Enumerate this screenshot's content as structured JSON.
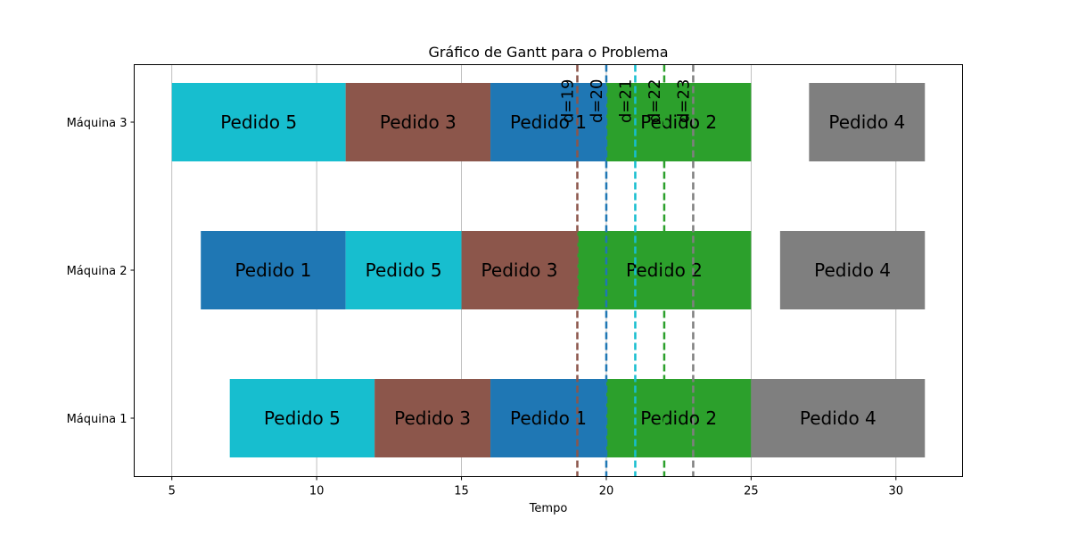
{
  "chart_data": {
    "type": "gantt",
    "title": "Gráfico de Gantt para o Problema",
    "xlabel": "Tempo",
    "ylabel": "",
    "xlim": [
      3.7,
      32.3
    ],
    "xticks": [
      5,
      10,
      15,
      20,
      25,
      30
    ],
    "grid": "vertical",
    "machines": [
      "Máquina 1",
      "Máquina 2",
      "Máquina 3"
    ],
    "tasks": [
      {
        "machine": "Máquina 3",
        "label": "Pedido 5",
        "start": 5,
        "end": 11,
        "color": "#17becf"
      },
      {
        "machine": "Máquina 3",
        "label": "Pedido 3",
        "start": 11,
        "end": 16,
        "color": "#8c564b"
      },
      {
        "machine": "Máquina 3",
        "label": "Pedido 1",
        "start": 16,
        "end": 20,
        "color": "#1f77b4"
      },
      {
        "machine": "Máquina 3",
        "label": "Pedido 2",
        "start": 20,
        "end": 25,
        "color": "#2ca02c"
      },
      {
        "machine": "Máquina 3",
        "label": "Pedido 4",
        "start": 27,
        "end": 31,
        "color": "#7f7f7f"
      },
      {
        "machine": "Máquina 2",
        "label": "Pedido 1",
        "start": 6,
        "end": 11,
        "color": "#1f77b4"
      },
      {
        "machine": "Máquina 2",
        "label": "Pedido 5",
        "start": 11,
        "end": 15,
        "color": "#17becf"
      },
      {
        "machine": "Máquina 2",
        "label": "Pedido 3",
        "start": 15,
        "end": 19,
        "color": "#8c564b"
      },
      {
        "machine": "Máquina 2",
        "label": "Pedido 2",
        "start": 19,
        "end": 25,
        "color": "#2ca02c"
      },
      {
        "machine": "Máquina 2",
        "label": "Pedido 4",
        "start": 26,
        "end": 31,
        "color": "#7f7f7f"
      },
      {
        "machine": "Máquina 1",
        "label": "Pedido 5",
        "start": 7,
        "end": 12,
        "color": "#17becf"
      },
      {
        "machine": "Máquina 1",
        "label": "Pedido 3",
        "start": 12,
        "end": 16,
        "color": "#8c564b"
      },
      {
        "machine": "Máquina 1",
        "label": "Pedido 1",
        "start": 16,
        "end": 20,
        "color": "#1f77b4"
      },
      {
        "machine": "Máquina 1",
        "label": "Pedido 2",
        "start": 20,
        "end": 25,
        "color": "#2ca02c"
      },
      {
        "machine": "Máquina 1",
        "label": "Pedido 4",
        "start": 25,
        "end": 31,
        "color": "#7f7f7f"
      }
    ],
    "deadlines": [
      {
        "label": "d=19",
        "x": 19,
        "color": "#8c564b"
      },
      {
        "label": "d=20",
        "x": 20,
        "color": "#1f77b4"
      },
      {
        "label": "d=21",
        "x": 21,
        "color": "#17becf"
      },
      {
        "label": "d=22",
        "x": 22,
        "color": "#2ca02c"
      },
      {
        "label": "d=23",
        "x": 23,
        "color": "#7f7f7f"
      }
    ]
  }
}
